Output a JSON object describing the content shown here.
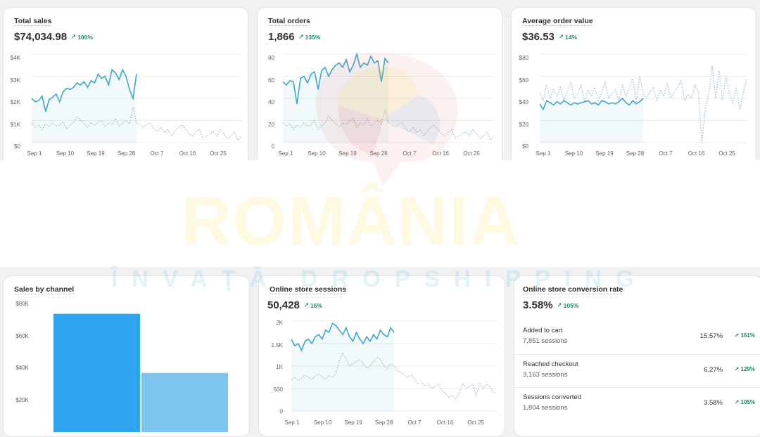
{
  "top_cards": [
    {
      "title": "Total sales",
      "value": "$74,034.98",
      "trend": "100%",
      "y_ticks": [
        "$4K",
        "$3K",
        "$2K",
        "$1K",
        "$0"
      ],
      "x_ticks": [
        "Sep 1",
        "Sep 10",
        "Sep 19",
        "Sep 28",
        "Oct 7",
        "Oct 16",
        "Oct 25"
      ]
    },
    {
      "title": "Total orders",
      "value": "1,866",
      "trend": "135%",
      "y_ticks": [
        "80",
        "60",
        "40",
        "20",
        "0"
      ],
      "x_ticks": [
        "Sep 1",
        "Sep 10",
        "Sep 19",
        "Sep 28",
        "Oct 7",
        "Oct 16",
        "Oct 25"
      ]
    },
    {
      "title": "Average order value",
      "value": "$36.53",
      "trend": "14%",
      "y_ticks": [
        "$80",
        "$60",
        "$40",
        "$20",
        "$0"
      ],
      "x_ticks": [
        "Sep 1",
        "Sep 10",
        "Sep 19",
        "Sep 28",
        "Oct 7",
        "Oct 16",
        "Oct 25"
      ]
    }
  ],
  "sales_by_channel": {
    "title": "Sales by channel",
    "y_ticks": [
      "$80K",
      "$60K",
      "$40K",
      "$20K"
    ]
  },
  "sessions": {
    "title": "Online store sessions",
    "value": "50,428",
    "trend": "16%",
    "y_ticks": [
      "2K",
      "1.5K",
      "1K",
      "500",
      "0"
    ],
    "x_ticks": [
      "Sep 1",
      "Sep 10",
      "Sep 19",
      "Sep 28",
      "Oct 7",
      "Oct 16",
      "Oct 25"
    ]
  },
  "conversion": {
    "title": "Online store conversion rate",
    "value": "3.58%",
    "trend": "105%",
    "rows": [
      {
        "label": "Added to cart",
        "sessions": "7,851 sessions",
        "pct": "15.57%",
        "trend": "161%"
      },
      {
        "label": "Reached checkout",
        "sessions": "3,163 sessions",
        "pct": "6.27%",
        "trend": "129%"
      },
      {
        "label": "Sessions converted",
        "sessions": "1,804 sessions",
        "pct": "3.58%",
        "trend": "105%"
      }
    ]
  },
  "watermark": {
    "main": "ROMÂNIA",
    "sub": "ÎNVAȚĂ DROPSHIPPING"
  },
  "colors": {
    "current_line": "#3ba8cc",
    "previous_line": "#8fb8d4",
    "bar_primary": "#2ea6ef",
    "bar_secondary": "#7cc4ee",
    "trend_green": "#1a8a5a"
  },
  "chart_data": [
    {
      "type": "line",
      "title": "Total sales",
      "ylim": [
        0,
        4000
      ],
      "x_days": 61,
      "series": [
        {
          "values": [
            2000,
            1850,
            1900,
            2100,
            1400,
            1950,
            2050,
            2200,
            1850,
            2300,
            2450,
            2400,
            2500,
            2700,
            2600,
            2750,
            2500,
            2800,
            2700,
            3100,
            2900,
            3000,
            2600,
            3300,
            3150,
            2850,
            3300,
            3000,
            2400,
            2000,
            3100
          ]
        },
        {
          "values": [
            900,
            700,
            800,
            600,
            850,
            700,
            900,
            750,
            800,
            950,
            600,
            800,
            900,
            1200,
            1000,
            850,
            700,
            900,
            800,
            950,
            1000,
            700,
            900,
            800,
            1100,
            750,
            900,
            1000,
            850,
            1600,
            900,
            800,
            700,
            850,
            900,
            600,
            500,
            700,
            450,
            600,
            300,
            500,
            700,
            800,
            600,
            400,
            300,
            500,
            600,
            200,
            300,
            400,
            500,
            300,
            600,
            400,
            200,
            300,
            500,
            100,
            300
          ]
        }
      ]
    },
    {
      "type": "line",
      "title": "Total orders",
      "ylim": [
        0,
        80
      ],
      "x_days": 61,
      "series": [
        {
          "values": [
            55,
            52,
            56,
            55,
            35,
            58,
            60,
            54,
            62,
            64,
            48,
            65,
            68,
            60,
            66,
            70,
            72,
            68,
            75,
            64,
            70,
            80,
            68,
            72,
            70,
            78,
            72,
            74,
            55,
            76,
            72
          ]
        },
        {
          "values": [
            18,
            15,
            17,
            12,
            16,
            14,
            18,
            15,
            16,
            20,
            12,
            15,
            18,
            24,
            20,
            17,
            14,
            18,
            16,
            20,
            22,
            14,
            18,
            16,
            22,
            15,
            18,
            20,
            17,
            30,
            18,
            16,
            14,
            17,
            18,
            12,
            10,
            14,
            9,
            12,
            6,
            10,
            14,
            16,
            12,
            8,
            6,
            10,
            12,
            4,
            6,
            8,
            10,
            6,
            12,
            8,
            4,
            6,
            10,
            2,
            6
          ]
        }
      ]
    },
    {
      "type": "line",
      "title": "Average order value",
      "ylim": [
        0,
        80
      ],
      "x_days": 61,
      "series": [
        {
          "values": [
            35,
            30,
            38,
            36,
            34,
            37,
            35,
            38,
            36,
            34,
            36,
            35,
            36,
            37,
            38,
            35,
            36,
            34,
            38,
            37,
            35,
            36,
            35,
            37,
            40,
            36,
            34,
            38,
            35,
            37,
            40
          ]
        },
        {
          "values": [
            45,
            38,
            52,
            40,
            48,
            42,
            50,
            38,
            46,
            55,
            40,
            44,
            52,
            36,
            48,
            42,
            50,
            38,
            46,
            54,
            40,
            44,
            48,
            38,
            52,
            42,
            50,
            58,
            36,
            60,
            44,
            40,
            46,
            50,
            38,
            48,
            42,
            54,
            40,
            46,
            50,
            56,
            38,
            44,
            40,
            52,
            46,
            0,
            30,
            44,
            70,
            40,
            65,
            38,
            60,
            44,
            36,
            50,
            30,
            44,
            58
          ]
        }
      ]
    },
    {
      "type": "bar",
      "title": "Sales by channel",
      "ylim": [
        0,
        80000
      ],
      "values": [
        74000,
        37000
      ]
    },
    {
      "type": "line",
      "title": "Online store sessions",
      "ylim": [
        0,
        2000
      ],
      "x_days": 61,
      "series": [
        {
          "values": [
            1600,
            1450,
            1500,
            1350,
            1550,
            1600,
            1500,
            1650,
            1700,
            1600,
            1800,
            1750,
            1950,
            1900,
            1800,
            1700,
            1850,
            1650,
            1550,
            1750,
            1600,
            1500,
            1650,
            1550,
            1700,
            1600,
            1800,
            1700,
            1650,
            1850,
            1750
          ]
        },
        {
          "values": [
            700,
            750,
            680,
            720,
            800,
            750,
            700,
            780,
            820,
            760,
            700,
            800,
            740,
            850,
            1100,
            1300,
            1150,
            1000,
            1050,
            1100,
            1150,
            1050,
            950,
            1000,
            1100,
            1200,
            1150,
            1000,
            950,
            1050,
            1000,
            900,
            850,
            800,
            750,
            800,
            700,
            600,
            650,
            550,
            600,
            500,
            550,
            600,
            450,
            400,
            300,
            350,
            250,
            400,
            600,
            500,
            550,
            600,
            350,
            600,
            500,
            600,
            550,
            400,
            400
          ]
        }
      ]
    }
  ]
}
